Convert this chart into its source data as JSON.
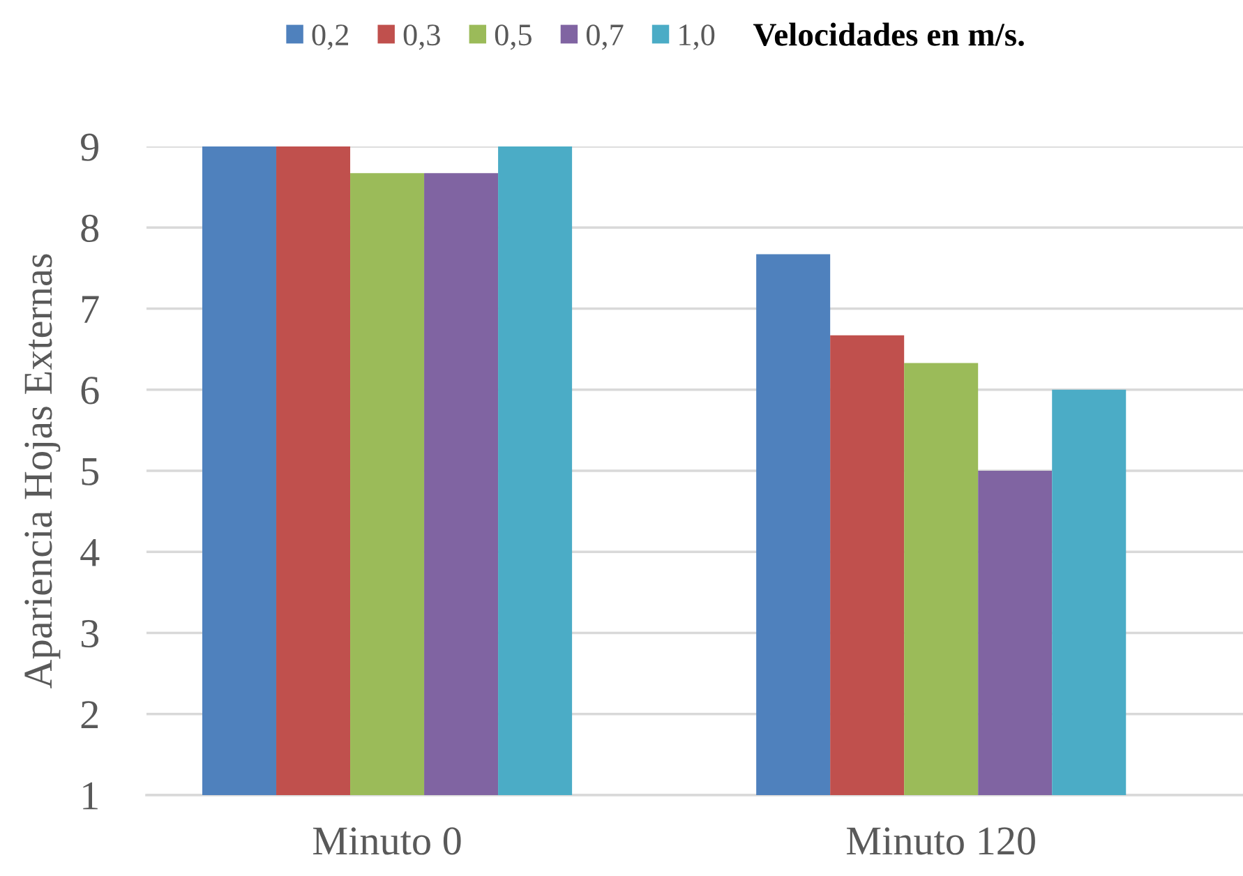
{
  "chart_data": {
    "type": "bar",
    "ylabel": "Apariencia Hojas Externas",
    "legend_title": "Velocidades en m/s.",
    "categories": [
      "Minuto 0",
      "Minuto 120"
    ],
    "series": [
      {
        "name": "0,2",
        "color": "#4f81bd",
        "values": [
          9,
          7.67
        ]
      },
      {
        "name": "0,3",
        "color": "#c0504d",
        "values": [
          9,
          6.67
        ]
      },
      {
        "name": "0,5",
        "color": "#9bbb59",
        "values": [
          8.67,
          6.33
        ]
      },
      {
        "name": "0,7",
        "color": "#8064a2",
        "values": [
          8.67,
          5
        ]
      },
      {
        "name": "1,0",
        "color": "#4bacc6",
        "values": [
          9,
          6
        ]
      }
    ],
    "ylim": [
      1,
      9
    ],
    "yticks": [
      1,
      2,
      3,
      4,
      5,
      6,
      7,
      8,
      9
    ],
    "grid": "y",
    "legend": "top"
  }
}
